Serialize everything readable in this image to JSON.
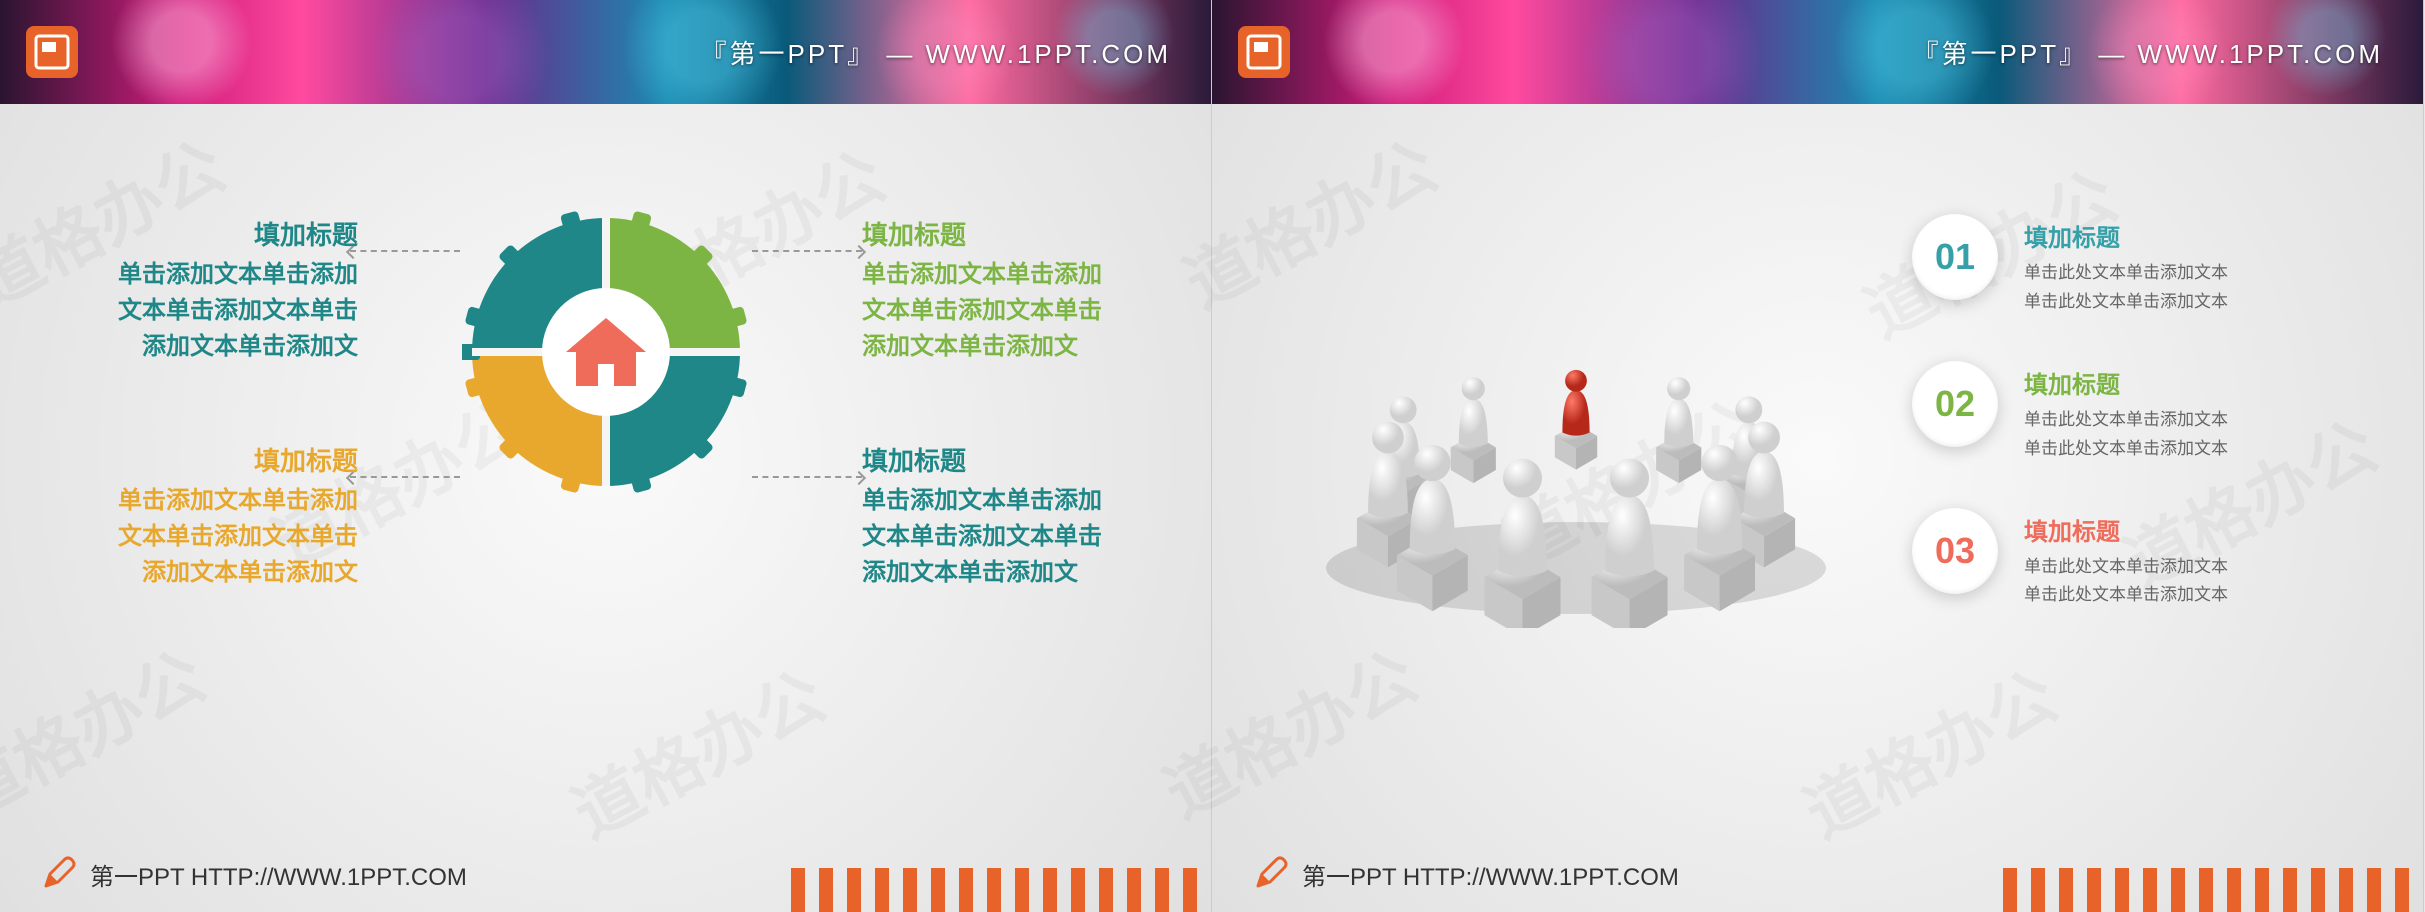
{
  "header": {
    "brand_text": "『第一PPT』 — WWW.1PPT.COM",
    "icon_bg": "#e8632a"
  },
  "footer": {
    "text": "第一PPT HTTP://WWW.1PPT.COM",
    "accent": "#e8632a"
  },
  "watermark_text": "道格办公",
  "slide1": {
    "type": "gear-4-quadrant-infographic",
    "gear": {
      "segments": [
        {
          "id": "tl",
          "color": "#1f8787"
        },
        {
          "id": "tr",
          "color": "#7db545"
        },
        {
          "id": "br",
          "color": "#1f8787"
        },
        {
          "id": "bl",
          "color": "#e8a82e"
        }
      ],
      "center_bg": "#ffffff",
      "center_icon": "home",
      "center_icon_color": "#ef6b5a"
    },
    "sections": [
      {
        "pos": "tl",
        "title": "填加标题",
        "body": "单击添加文本单击添加文本单击添加文本单击添加文本单击添加文",
        "title_color": "#1f8787",
        "body_color": "#1f8787"
      },
      {
        "pos": "tr",
        "title": "填加标题",
        "body": "单击添加文本单击添加文本单击添加文本单击添加文本单击添加文",
        "title_color": "#7db545",
        "body_color": "#7db545"
      },
      {
        "pos": "bl",
        "title": "填加标题",
        "body": "单击添加文本单击添加文本单击添加文本单击添加文本单击添加文",
        "title_color": "#e8a82e",
        "body_color": "#e8a82e"
      },
      {
        "pos": "br",
        "title": "填加标题",
        "body": "单击添加文本单击添加文本单击添加文本单击添加文本单击添加文",
        "title_color": "#1f8787",
        "body_color": "#1f8787"
      }
    ]
  },
  "slide2": {
    "type": "3d-figure-with-numbered-list",
    "figure": {
      "people_count": 11,
      "leader_color": "#d93a2a",
      "member_color": "#e6e6e6",
      "cube_color": "#d0d0d0"
    },
    "bullets": [
      {
        "num": "01",
        "num_color": "#35a0a8",
        "title": "填加标题",
        "title_color": "#35a0a8",
        "body": "单击此处文本单击添加文本\n单击此处文本单击添加文本"
      },
      {
        "num": "02",
        "num_color": "#7db545",
        "title": "填加标题",
        "title_color": "#7db545",
        "body": "单击此处文本单击添加文本\n单击此处文本单击添加文本"
      },
      {
        "num": "03",
        "num_color": "#ef6b5a",
        "title": "填加标题",
        "title_color": "#ef6b5a",
        "body": "单击此处文本单击添加文本\n单击此处文本单击添加文本"
      }
    ]
  }
}
